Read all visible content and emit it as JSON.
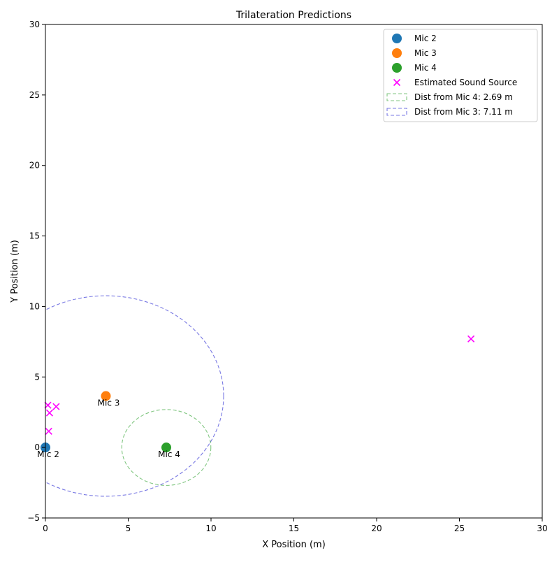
{
  "chart_data": {
    "type": "scatter",
    "title": "Trilateration Predictions",
    "xlabel": "X Position (m)",
    "ylabel": "Y Position (m)",
    "xlim": [
      0,
      30
    ],
    "ylim": [
      -5,
      30
    ],
    "xticks": [
      0,
      5,
      10,
      15,
      20,
      25,
      30
    ],
    "yticks": [
      -5,
      0,
      5,
      10,
      15,
      20,
      25,
      30
    ],
    "grid": false,
    "legend_position": "top-right",
    "microphones": [
      {
        "name": "Mic 2",
        "x": 0.0,
        "y": 0.0,
        "color": "#1f77b4",
        "label": "Mic 2"
      },
      {
        "name": "Mic 3",
        "x": 3.65,
        "y": 3.65,
        "color": "#ff7f0e",
        "label": "Mic 3"
      },
      {
        "name": "Mic 4",
        "x": 7.3,
        "y": 0.0,
        "color": "#2ca02c",
        "label": "Mic 4"
      }
    ],
    "estimated_sources": {
      "name": "Estimated Sound Source",
      "color": "#ff00ff",
      "points": [
        {
          "x": 0.15,
          "y": 3.0
        },
        {
          "x": 0.65,
          "y": 2.9
        },
        {
          "x": 0.25,
          "y": 2.45
        },
        {
          "x": 0.2,
          "y": 1.15
        },
        {
          "x": 25.7,
          "y": 7.7
        }
      ]
    },
    "circles": [
      {
        "name": "Dist from Mic 4: 2.69 m",
        "cx": 7.3,
        "cy": 0.0,
        "r": 2.69,
        "color": "#2ca02c"
      },
      {
        "name": "Dist from Mic 3: 7.11 m",
        "cx": 3.65,
        "cy": 3.65,
        "r": 7.11,
        "color": "#1f1fd1"
      }
    ]
  }
}
